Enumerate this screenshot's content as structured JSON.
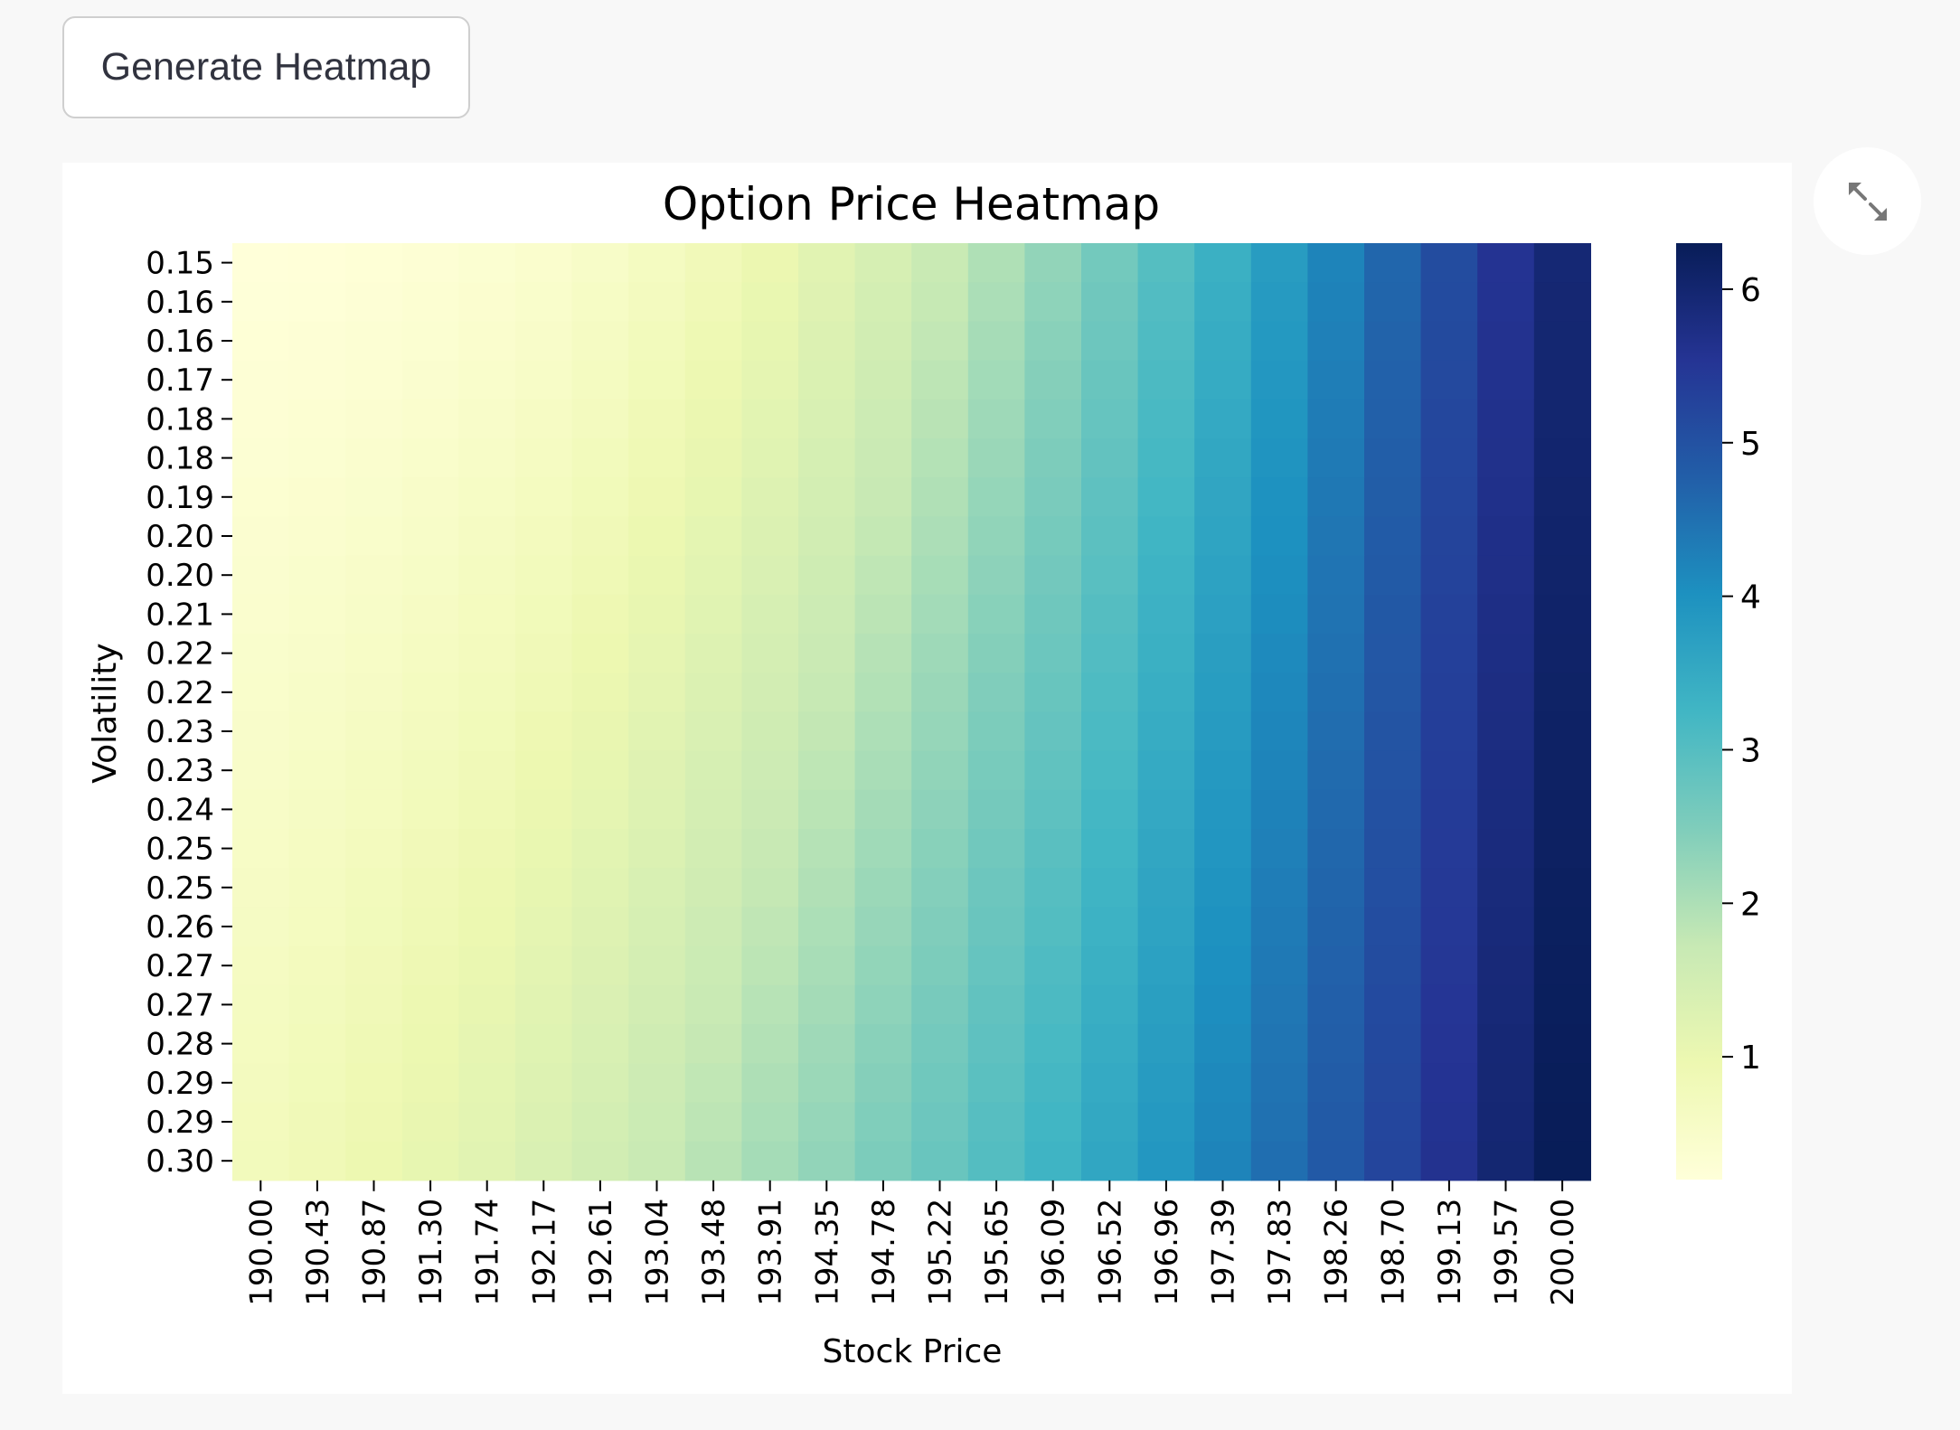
{
  "button": {
    "label": "Generate Heatmap"
  },
  "icons": {
    "expand": "fullscreen-expand-icon"
  },
  "chart_data": {
    "type": "heatmap",
    "title": "Option Price Heatmap",
    "xlabel": "Stock Price",
    "ylabel": "Volatility",
    "x": [
      "190.00",
      "190.43",
      "190.87",
      "191.30",
      "191.74",
      "192.17",
      "192.61",
      "193.04",
      "193.48",
      "193.91",
      "194.35",
      "194.78",
      "195.22",
      "195.65",
      "196.09",
      "196.52",
      "196.96",
      "197.39",
      "197.83",
      "198.26",
      "198.70",
      "199.13",
      "199.57",
      "200.00"
    ],
    "y": [
      "0.15",
      "0.16",
      "0.16",
      "0.17",
      "0.18",
      "0.18",
      "0.19",
      "0.20",
      "0.20",
      "0.21",
      "0.22",
      "0.22",
      "0.23",
      "0.23",
      "0.24",
      "0.25",
      "0.25",
      "0.26",
      "0.27",
      "0.27",
      "0.28",
      "0.29",
      "0.29",
      "0.30"
    ],
    "colormap": "YlGnBu",
    "colorbar": {
      "min": 0.2,
      "max": 6.3,
      "ticks": [
        1,
        2,
        3,
        4,
        5,
        6
      ]
    },
    "values_row_first": [
      0.2,
      0.22,
      0.25,
      0.29,
      0.35,
      0.43,
      0.53,
      0.66,
      0.81,
      0.99,
      1.2,
      1.43,
      1.69,
      1.98,
      2.29,
      2.63,
      3.0,
      3.38,
      3.79,
      4.21,
      4.65,
      5.1,
      5.56,
      5.95
    ],
    "values_row_last": [
      0.75,
      0.85,
      0.96,
      1.08,
      1.21,
      1.36,
      1.52,
      1.69,
      1.88,
      2.08,
      2.29,
      2.52,
      2.76,
      3.02,
      3.29,
      3.58,
      3.88,
      4.2,
      4.53,
      4.87,
      5.23,
      5.6,
      5.98,
      6.3
    ]
  }
}
